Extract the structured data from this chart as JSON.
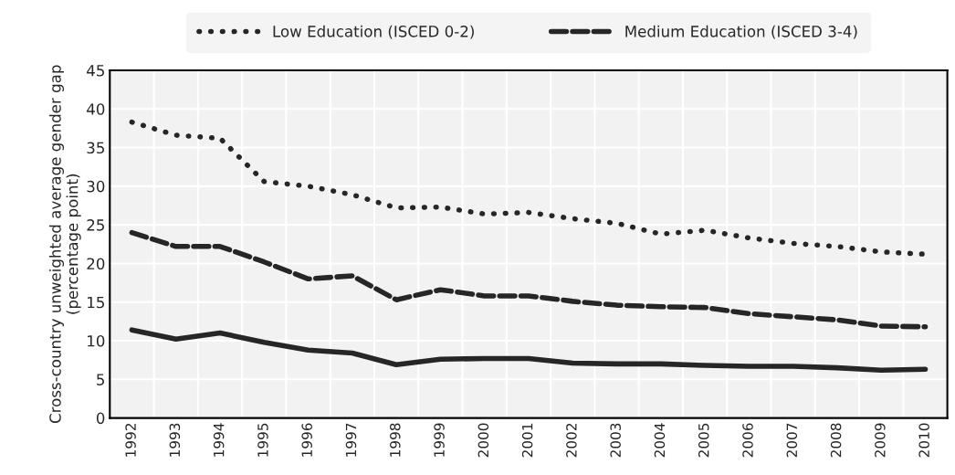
{
  "chart_data": {
    "type": "line",
    "ylabel": "Cross-country unweighted average gender gap\n(percentage point)",
    "categories": [
      "1992",
      "1993",
      "1994",
      "1995",
      "1996",
      "1997",
      "1998",
      "1999",
      "2000",
      "2001",
      "2002",
      "2003",
      "2004",
      "2005",
      "2006",
      "2007",
      "2008",
      "2009",
      "2010"
    ],
    "series": [
      {
        "name": "Low Education (ISCED 0-2)",
        "color": "#262626",
        "line_style": "dotted",
        "values": [
          38.3,
          36.6,
          36.2,
          30.6,
          30.0,
          28.9,
          27.2,
          27.3,
          26.4,
          26.6,
          25.8,
          25.2,
          23.8,
          24.3,
          23.3,
          22.6,
          22.2,
          21.5,
          21.2
        ]
      },
      {
        "name": "Medium Education (ISCED 3-4)",
        "color": "#262626",
        "line_style": "dashed",
        "values": [
          24.0,
          22.2,
          22.2,
          20.2,
          18.0,
          18.4,
          15.3,
          16.6,
          15.8,
          15.8,
          15.1,
          14.6,
          14.4,
          14.3,
          13.5,
          13.1,
          12.7,
          11.9,
          11.8
        ]
      },
      {
        "color": "#262626",
        "line_style": "solid",
        "values": [
          11.4,
          10.2,
          11.0,
          9.8,
          8.8,
          8.4,
          6.9,
          7.6,
          7.7,
          7.7,
          7.1,
          7.0,
          7.0,
          6.8,
          6.7,
          6.7,
          6.5,
          6.2,
          6.3
        ]
      }
    ],
    "ylim": [
      0,
      45
    ],
    "yticks": [
      0,
      5,
      10,
      15,
      20,
      25,
      30,
      35,
      40,
      45
    ],
    "grid": true,
    "legend": "top"
  }
}
